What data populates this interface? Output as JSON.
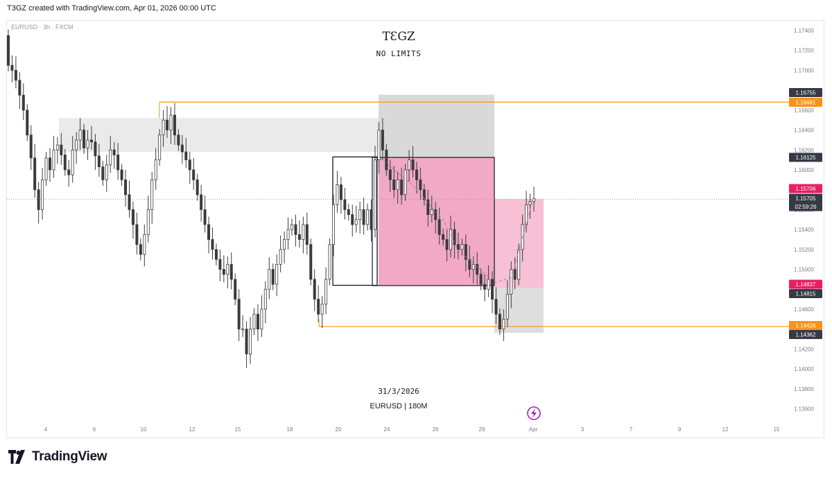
{
  "header": {
    "credit": "T3GZ created with TradingView.com, Apr 01, 2026 00:00 UTC"
  },
  "symbol_info": "EURUSD · 3h · FXCM",
  "watermark": {
    "title": "TƐGZ",
    "subtitle": "NO LIMITS",
    "date": "31/3/2026",
    "pair": "EURUSD | 180M"
  },
  "footer": {
    "brand": "TradingView"
  },
  "colors": {
    "accent": "#f7931a",
    "pink": "#f3a6c1",
    "candle": "#3b3b3b",
    "gray_zone": "#e6e6e6",
    "label_dark": "#363a45",
    "label_pink": "#e91e63"
  },
  "icons": {
    "lightning": "lightning-icon",
    "logo": "tradingview-logo-icon"
  },
  "chart_data": {
    "type": "candlestick",
    "ylim": [
      1.135,
      1.1752
    ],
    "yticks": [
      "1.17400",
      "1.17200",
      "1.17000",
      "1.16800",
      "1.16600",
      "1.16400",
      "1.16200",
      "1.16000",
      "1.15800",
      "1.15600",
      "1.15400",
      "1.15200",
      "1.15000",
      "1.14800",
      "1.14600",
      "1.14400",
      "1.14200",
      "1.14000",
      "1.13800",
      "1.13600"
    ],
    "xticks": [
      "4",
      "6",
      "10",
      "12",
      "15",
      "18",
      "20",
      "24",
      "26",
      "29",
      "Apr",
      "3",
      "7",
      "9",
      "12",
      "15"
    ],
    "price_labels": [
      {
        "value": "1.16755",
        "style": "dark"
      },
      {
        "value": "1.16681",
        "style": "orange"
      },
      {
        "value": "1.16125",
        "style": "dark"
      },
      {
        "value": "1.15706",
        "style": "pink"
      },
      {
        "value": "1.15705",
        "style": "dark"
      },
      {
        "value": "02:59:26",
        "style": "dark-sub"
      },
      {
        "value": "1.14837",
        "style": "pink"
      },
      {
        "value": "1.14815",
        "style": "dark"
      },
      {
        "value": "1.14426",
        "style": "orange"
      },
      {
        "value": "1.14362",
        "style": "dark"
      }
    ],
    "levels": {
      "high_line": 1.16681,
      "low_line": 1.14426,
      "last_price": 1.15705
    },
    "zones": [
      {
        "kind": "supply",
        "from": "Mar 5",
        "to": "Mar 23",
        "top": 1.1652,
        "bottom": 1.1618
      },
      {
        "kind": "demand",
        "from": "Mar 17",
        "to": "Mar 30",
        "top": 1.1484,
        "bottom": 1.1467
      },
      {
        "kind": "range",
        "from": "Mar 19",
        "to": "Mar 23",
        "top": 1.1613,
        "bottom": 1.1484
      },
      {
        "kind": "position-stop",
        "from": "Mar 23",
        "to": "Mar 29",
        "top": 1.16755,
        "bottom": 1.16125
      },
      {
        "kind": "position-target",
        "from": "Mar 23",
        "to": "Mar 29",
        "top": 1.16125,
        "bottom": 1.14837
      },
      {
        "kind": "position2-stop",
        "from": "Mar 29",
        "to": "Mar 31",
        "top": 1.14815,
        "bottom": 1.14362
      },
      {
        "kind": "position2-target",
        "from": "Mar 29",
        "to": "Mar 31",
        "top": 1.15706,
        "bottom": 1.14815
      }
    ],
    "closes": [
      1.1705,
      1.17,
      1.169,
      1.1675,
      1.166,
      1.1635,
      1.1612,
      1.158,
      1.156,
      1.159,
      1.1612,
      1.16,
      1.162,
      1.1625,
      1.1615,
      1.16,
      1.1595,
      1.162,
      1.163,
      1.164,
      1.1622,
      1.163,
      1.1628,
      1.1614,
      1.1603,
      1.159,
      1.1605,
      1.162,
      1.1615,
      1.16,
      1.159,
      1.1575,
      1.156,
      1.1545,
      1.1525,
      1.1515,
      1.1535,
      1.156,
      1.159,
      1.161,
      1.1635,
      1.165,
      1.164,
      1.1655,
      1.1635,
      1.1625,
      1.1618,
      1.161,
      1.16,
      1.159,
      1.1575,
      1.156,
      1.1545,
      1.153,
      1.152,
      1.151,
      1.15,
      1.1495,
      1.1505,
      1.149,
      1.147,
      1.144,
      1.144,
      1.1415,
      1.144,
      1.1455,
      1.144,
      1.146,
      1.148,
      1.15,
      1.1485,
      1.1505,
      1.152,
      1.153,
      1.154,
      1.1545,
      1.1535,
      1.153,
      1.1545,
      1.1525,
      1.149,
      1.147,
      1.1455,
      1.1465,
      1.149,
      1.1525,
      1.1565,
      1.1585,
      1.157,
      1.156,
      1.1555,
      1.1545,
      1.155,
      1.156,
      1.1545,
      1.156,
      1.154,
      1.161,
      1.164,
      1.162,
      1.16,
      1.159,
      1.158,
      1.159,
      1.1575,
      1.16,
      1.161,
      1.16,
      1.159,
      1.158,
      1.157,
      1.1555,
      1.156,
      1.155,
      1.1535,
      1.153,
      1.152,
      1.154,
      1.1525,
      1.152,
      1.1525,
      1.151,
      1.15,
      1.1505,
      1.1495,
      1.1485,
      1.148,
      1.149,
      1.147,
      1.1455,
      1.144,
      1.145,
      1.1475,
      1.15,
      1.149,
      1.152,
      1.1545,
      1.1565,
      1.1568,
      1.1571
    ]
  }
}
